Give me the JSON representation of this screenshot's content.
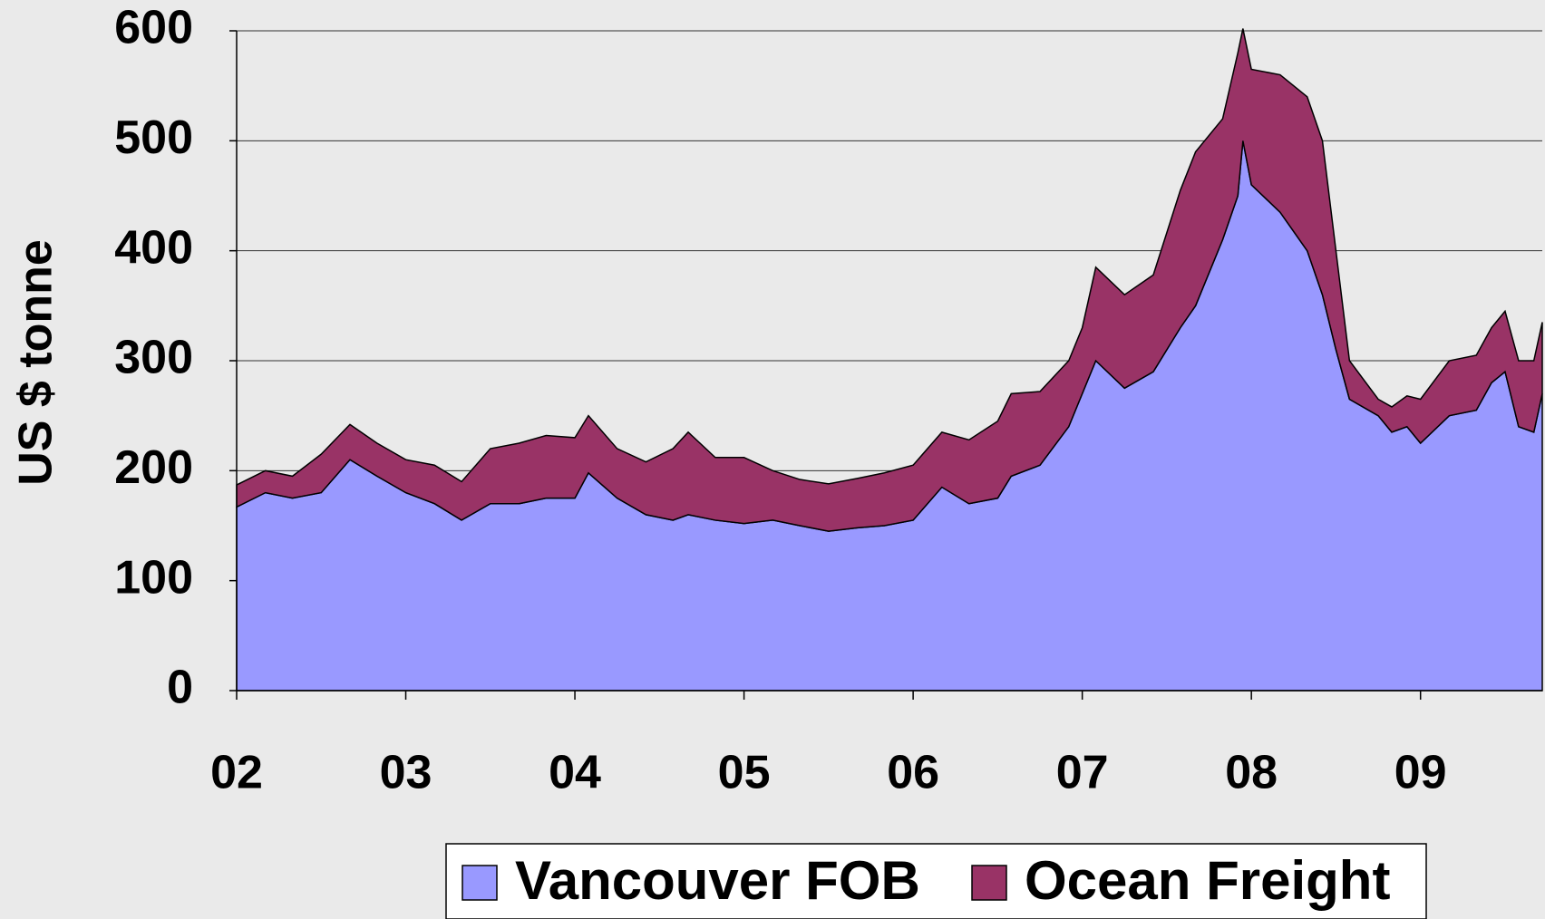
{
  "chart_data": {
    "type": "stacked_area",
    "y_label": "US $ tonne",
    "x": [
      2.0,
      2.17,
      2.33,
      2.5,
      2.67,
      2.83,
      3.0,
      3.17,
      3.33,
      3.5,
      3.67,
      3.83,
      4.0,
      4.08,
      4.25,
      4.42,
      4.58,
      4.67,
      4.83,
      5.0,
      5.17,
      5.33,
      5.5,
      5.67,
      5.83,
      6.0,
      6.17,
      6.33,
      6.5,
      6.58,
      6.75,
      6.92,
      7.0,
      7.08,
      7.25,
      7.42,
      7.58,
      7.67,
      7.83,
      7.92,
      7.95,
      8.0,
      8.17,
      8.33,
      8.42,
      8.5,
      8.58,
      8.75,
      8.83,
      8.92,
      9.0,
      9.17,
      9.33,
      9.42,
      9.5,
      9.58,
      9.67,
      9.72
    ],
    "series": [
      {
        "name": "Vancouver FOB",
        "color": "#9999ff",
        "values": [
          167,
          180,
          175,
          180,
          210,
          195,
          180,
          170,
          155,
          170,
          170,
          175,
          175,
          198,
          175,
          160,
          155,
          160,
          155,
          152,
          155,
          150,
          145,
          148,
          150,
          155,
          185,
          170,
          175,
          195,
          205,
          240,
          270,
          300,
          275,
          290,
          330,
          350,
          410,
          450,
          500,
          460,
          435,
          400,
          360,
          310,
          265,
          250,
          235,
          240,
          225,
          250,
          255,
          280,
          290,
          240,
          235,
          270
        ]
      },
      {
        "name": "Ocean Freight",
        "color": "#993366",
        "values": [
          20,
          20,
          20,
          35,
          32,
          30,
          30,
          35,
          35,
          50,
          55,
          57,
          55,
          52,
          45,
          48,
          65,
          75,
          57,
          60,
          45,
          42,
          43,
          45,
          48,
          50,
          50,
          58,
          70,
          75,
          67,
          60,
          60,
          85,
          85,
          88,
          125,
          140,
          110,
          130,
          102,
          105,
          125,
          140,
          140,
          90,
          35,
          15,
          23,
          28,
          40,
          50,
          50,
          50,
          55,
          60,
          65,
          65
        ]
      }
    ],
    "xlim": [
      2,
      9.72
    ],
    "xticks": [
      {
        "value": 2,
        "label": "02"
      },
      {
        "value": 3,
        "label": "03"
      },
      {
        "value": 4,
        "label": "04"
      },
      {
        "value": 5,
        "label": "05"
      },
      {
        "value": 6,
        "label": "06"
      },
      {
        "value": 7,
        "label": "07"
      },
      {
        "value": 8,
        "label": "08"
      },
      {
        "value": 9,
        "label": "09"
      }
    ],
    "ylim": [
      0,
      600
    ],
    "yticks": [
      0,
      100,
      200,
      300,
      400,
      500,
      600
    ],
    "grid": true,
    "legend": "bottom"
  }
}
